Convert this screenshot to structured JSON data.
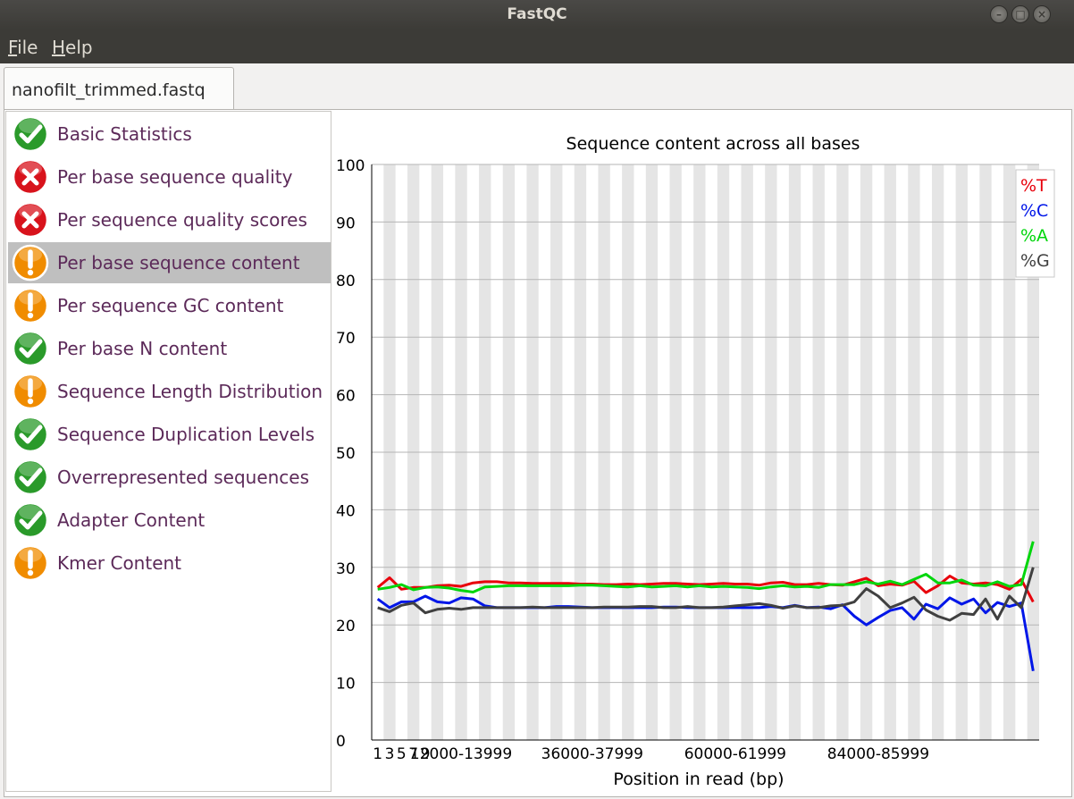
{
  "window": {
    "title": "FastQC"
  },
  "menu": {
    "file_label": "File",
    "help_label": "Help"
  },
  "tab": {
    "label": "nanofilt_trimmed.fastq"
  },
  "modules": [
    {
      "label": "Basic Statistics",
      "status": "pass"
    },
    {
      "label": "Per base sequence quality",
      "status": "fail"
    },
    {
      "label": "Per sequence quality scores",
      "status": "fail"
    },
    {
      "label": "Per base sequence content",
      "status": "warn",
      "selected": true
    },
    {
      "label": "Per sequence GC content",
      "status": "warn"
    },
    {
      "label": "Per base N content",
      "status": "pass"
    },
    {
      "label": "Sequence Length Distribution",
      "status": "warn"
    },
    {
      "label": "Sequence Duplication Levels",
      "status": "pass"
    },
    {
      "label": "Overrepresented sequences",
      "status": "pass"
    },
    {
      "label": "Adapter Content",
      "status": "pass"
    },
    {
      "label": "Kmer Content",
      "status": "warn"
    }
  ],
  "status_colors": {
    "pass": "#2a9a2a",
    "fail": "#d8131c",
    "warn": "#f08c00"
  },
  "chart_data": {
    "type": "line",
    "title": "Sequence content across all bases",
    "xlabel": "Position in read (bp)",
    "ylabel": "",
    "ylim": [
      0,
      100
    ],
    "yticks": [
      0,
      10,
      20,
      30,
      40,
      50,
      60,
      70,
      80,
      90,
      100
    ],
    "xtick_labels": [
      {
        "index": 0,
        "label": "1"
      },
      {
        "index": 1,
        "label": "3"
      },
      {
        "index": 2,
        "label": "5"
      },
      {
        "index": 3,
        "label": "7"
      },
      {
        "index": 4,
        "label": "9"
      },
      {
        "index": 7,
        "label": "12000-13999"
      },
      {
        "index": 18,
        "label": "36000-37999"
      },
      {
        "index": 30,
        "label": "60000-61999"
      },
      {
        "index": 42,
        "label": "84000-85999"
      }
    ],
    "alternating_band_background": true,
    "legend_position": "top-right",
    "series": [
      {
        "name": "%T",
        "color": "#e8000b",
        "values": [
          26.5,
          28.2,
          26.2,
          26.5,
          26.5,
          26.8,
          26.9,
          26.7,
          27.3,
          27.5,
          27.5,
          27.3,
          27.3,
          27.2,
          27.2,
          27.2,
          27.2,
          27.1,
          27.1,
          27.0,
          27.0,
          27.1,
          27.0,
          27.1,
          27.2,
          27.2,
          27.1,
          27.0,
          27.1,
          27.2,
          27.1,
          27.1,
          26.9,
          27.3,
          27.4,
          27.0,
          27.0,
          27.2,
          27.0,
          26.9,
          27.5,
          28.1,
          26.8,
          27.1,
          26.9,
          27.6,
          25.6,
          26.8,
          28.5,
          27.3,
          27.1,
          27.3,
          27.0,
          26.2,
          27.9,
          24.0
        ]
      },
      {
        "name": "%C",
        "color": "#0016e8",
        "values": [
          24.5,
          23.0,
          24.0,
          24.0,
          25.0,
          24.0,
          23.8,
          24.7,
          24.5,
          23.3,
          23.0,
          23.0,
          23.0,
          23.0,
          23.0,
          23.2,
          23.2,
          23.1,
          23.0,
          23.0,
          23.0,
          23.0,
          23.0,
          23.0,
          23.1,
          23.1,
          23.0,
          23.0,
          23.0,
          23.0,
          23.0,
          23.0,
          23.0,
          23.2,
          23.0,
          23.4,
          23.0,
          23.1,
          22.8,
          23.5,
          21.5,
          20.0,
          21.3,
          22.5,
          23.0,
          21.0,
          23.6,
          22.8,
          24.7,
          23.6,
          24.5,
          22.1,
          23.9,
          23.2,
          23.8,
          12.0
        ]
      },
      {
        "name": "%A",
        "color": "#00d60c",
        "values": [
          26.2,
          26.5,
          27.0,
          26.1,
          26.5,
          26.6,
          26.4,
          26.0,
          25.7,
          26.6,
          26.7,
          26.8,
          26.8,
          26.8,
          26.8,
          26.8,
          26.8,
          26.9,
          26.9,
          26.8,
          26.7,
          26.6,
          26.8,
          26.6,
          26.7,
          26.8,
          26.6,
          26.8,
          26.6,
          26.7,
          26.6,
          26.5,
          26.3,
          26.6,
          26.8,
          26.6,
          26.7,
          26.5,
          27.0,
          27.0,
          27.0,
          27.5,
          27.1,
          27.6,
          27.0,
          27.9,
          28.8,
          27.3,
          27.3,
          27.8,
          26.9,
          26.8,
          27.5,
          26.7,
          27.0,
          34.5
        ]
      },
      {
        "name": "%G",
        "color": "#404040",
        "values": [
          23.0,
          22.3,
          23.4,
          23.8,
          22.1,
          22.7,
          22.9,
          22.7,
          23.0,
          23.0,
          23.0,
          23.0,
          23.0,
          23.1,
          23.0,
          23.0,
          23.0,
          23.0,
          23.0,
          23.1,
          23.1,
          23.1,
          23.2,
          23.2,
          23.0,
          23.0,
          23.2,
          23.0,
          23.0,
          23.1,
          23.3,
          23.5,
          23.7,
          23.4,
          22.9,
          23.3,
          23.0,
          23.0,
          23.3,
          23.4,
          24.0,
          26.3,
          25.0,
          23.0,
          23.8,
          24.8,
          22.6,
          21.5,
          20.8,
          22.0,
          21.8,
          24.5,
          21.0,
          25.0,
          23.0,
          30.0
        ]
      }
    ]
  }
}
